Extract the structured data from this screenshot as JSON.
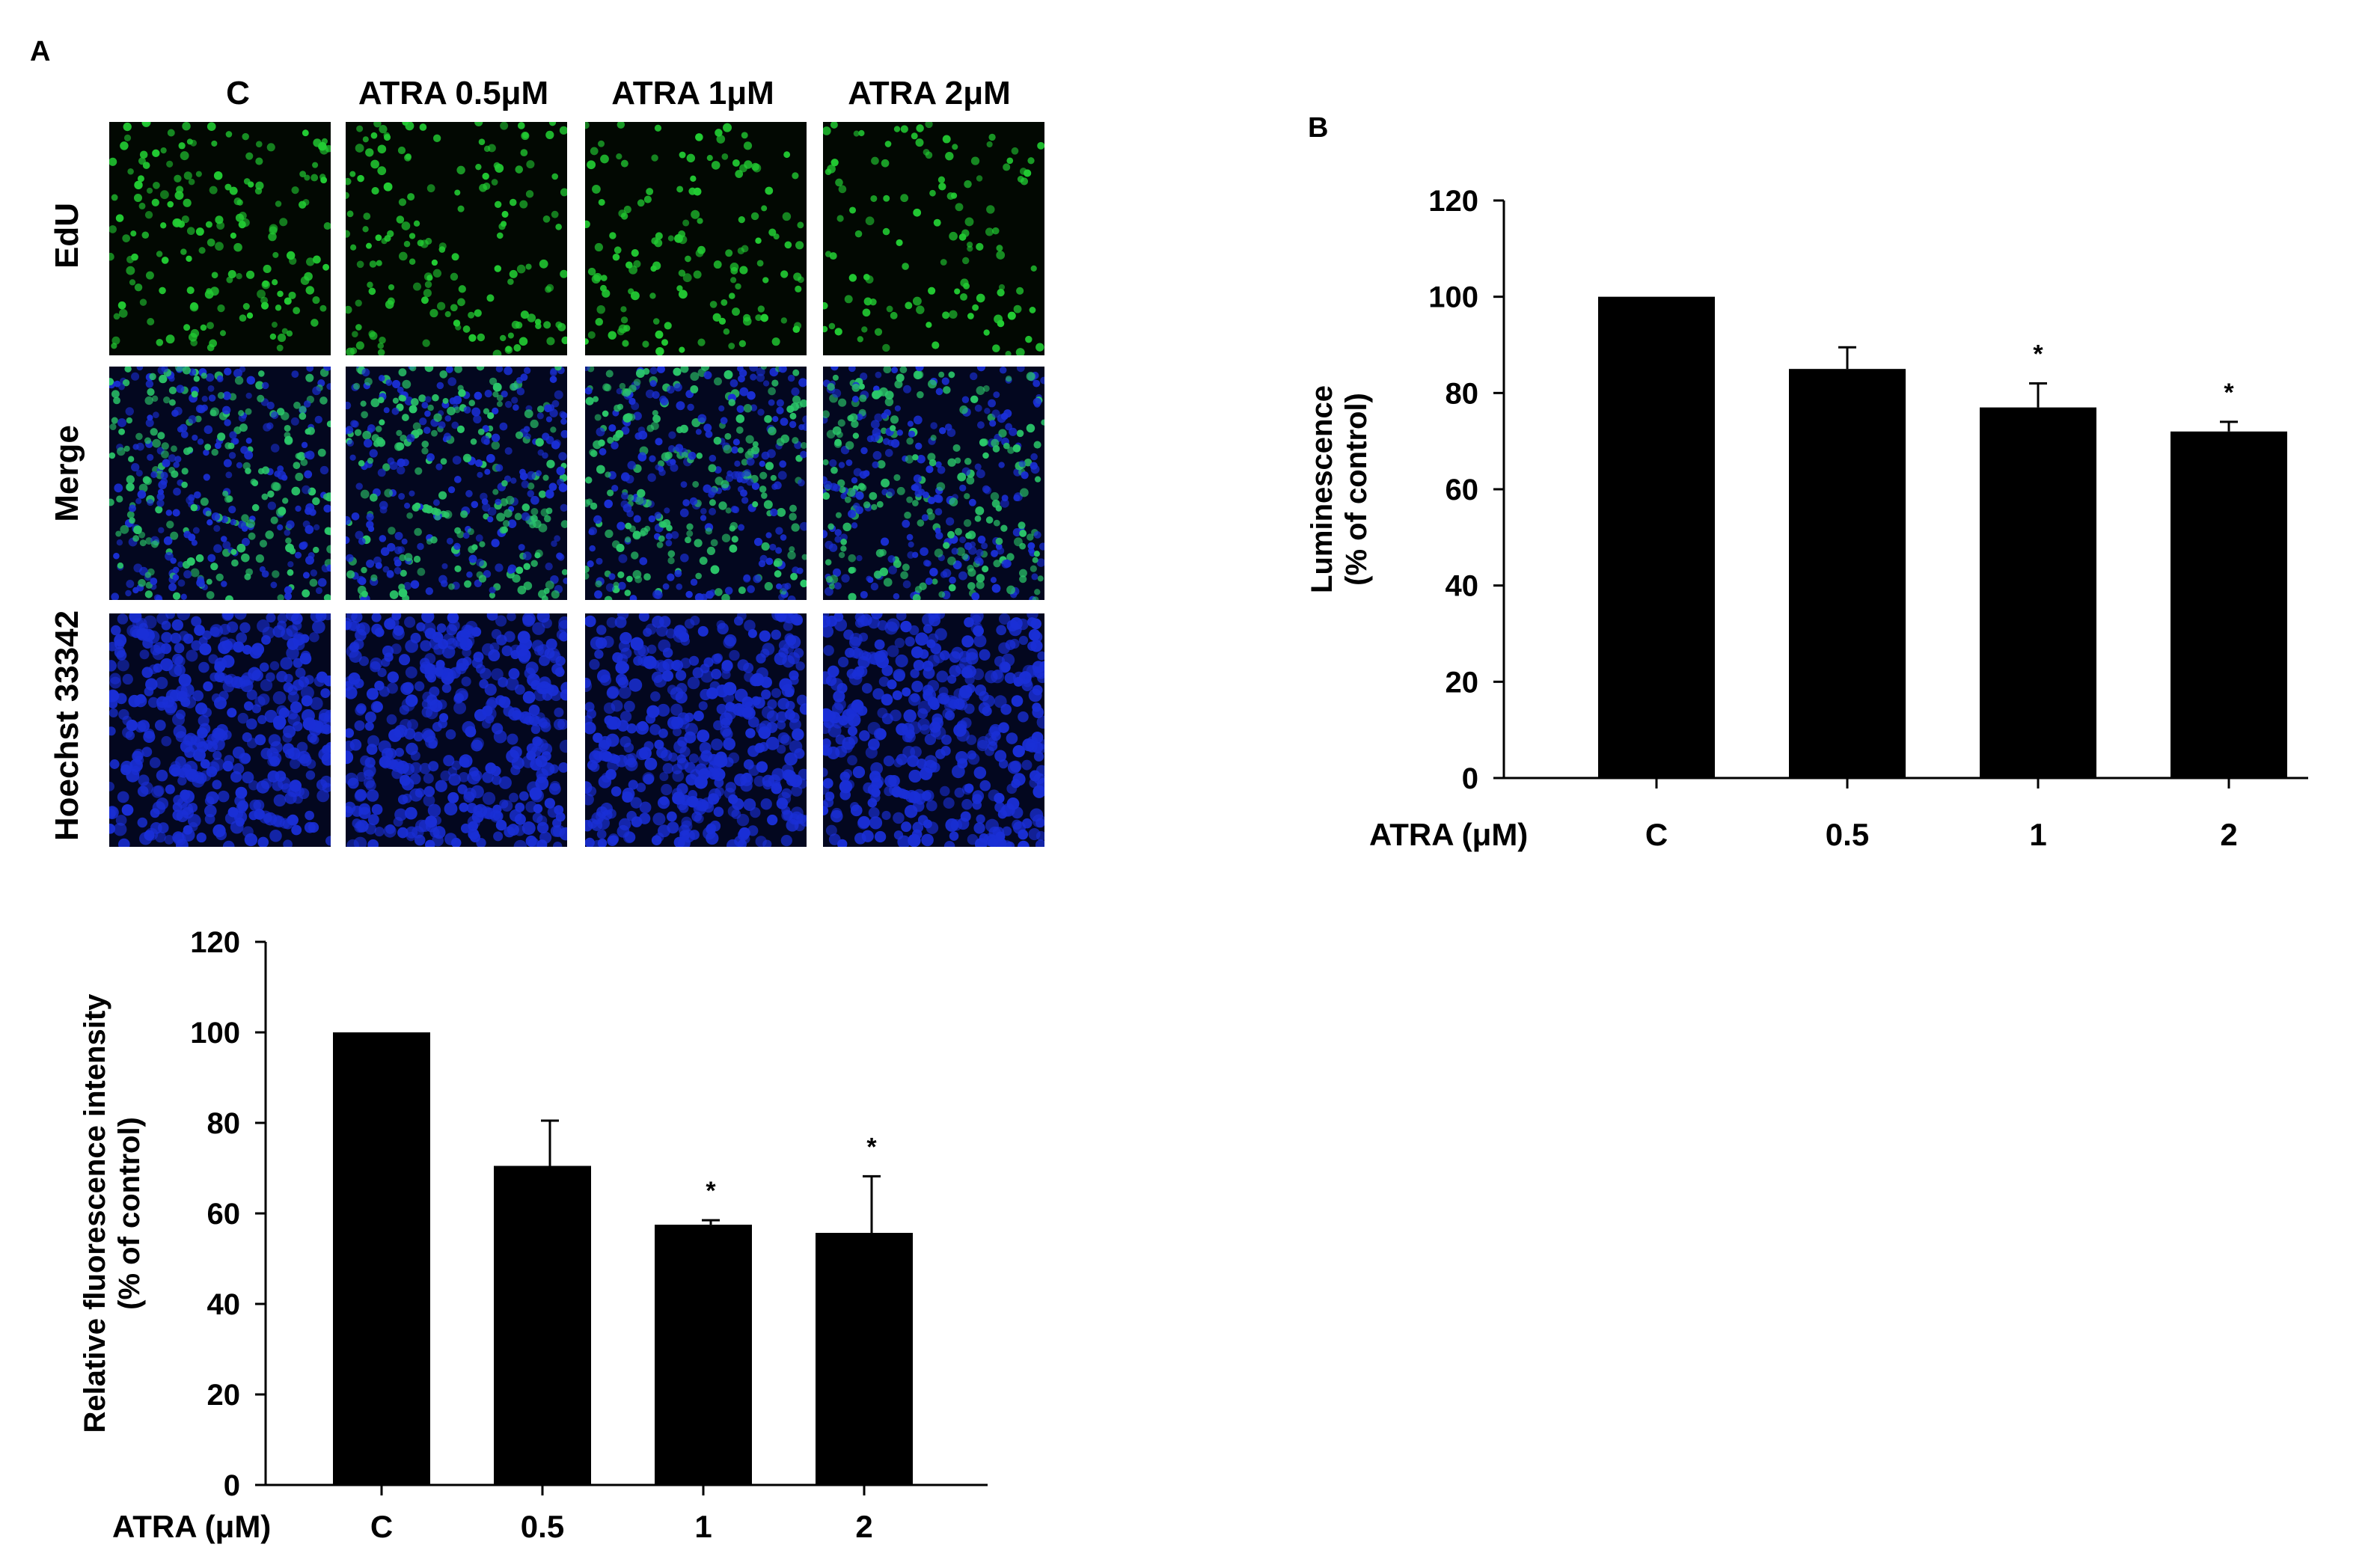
{
  "figure": {
    "panel_a_label": "A",
    "panel_b_label": "B",
    "micrograph_columns": [
      "C",
      "ATRA 0.5μM",
      "ATRA 1μM",
      "ATRA 2μM"
    ],
    "micrograph_rows": [
      "EdU",
      "Merge",
      "Hoechst 33342"
    ],
    "colors": {
      "edu_green": "#22cc33",
      "hoechst_blue": "#1a2fd6",
      "bar_fill": "#000000",
      "background": "#ffffff"
    }
  },
  "chart_data": [
    {
      "id": "panel-a-chart",
      "type": "bar",
      "categories": [
        "C",
        "0.5",
        "1",
        "2"
      ],
      "values": [
        100,
        70.5,
        57.5,
        55.7
      ],
      "errors": [
        0,
        10,
        1,
        12.5
      ],
      "significance": [
        "",
        "",
        "*",
        "*"
      ],
      "title": "",
      "xlabel": "ATRA (μM)",
      "ylabel": [
        "Relative fluorescence intensity",
        "(% of control)"
      ],
      "ylim": [
        0,
        120
      ],
      "yticks": [
        0,
        20,
        40,
        60,
        80,
        100,
        120
      ],
      "grid": false,
      "legend": "none"
    },
    {
      "id": "panel-b-chart",
      "type": "bar",
      "categories": [
        "C",
        "0.5",
        "1",
        "2"
      ],
      "values": [
        100,
        85,
        77,
        72
      ],
      "errors": [
        0,
        4.5,
        5,
        2
      ],
      "significance": [
        "",
        "",
        "*",
        "*"
      ],
      "title": "",
      "xlabel": "ATRA (μM)",
      "ylabel": [
        "Luminescence",
        "(% of control)"
      ],
      "ylim": [
        0,
        120
      ],
      "yticks": [
        0,
        20,
        40,
        60,
        80,
        100,
        120
      ],
      "grid": false,
      "legend": "none"
    }
  ]
}
